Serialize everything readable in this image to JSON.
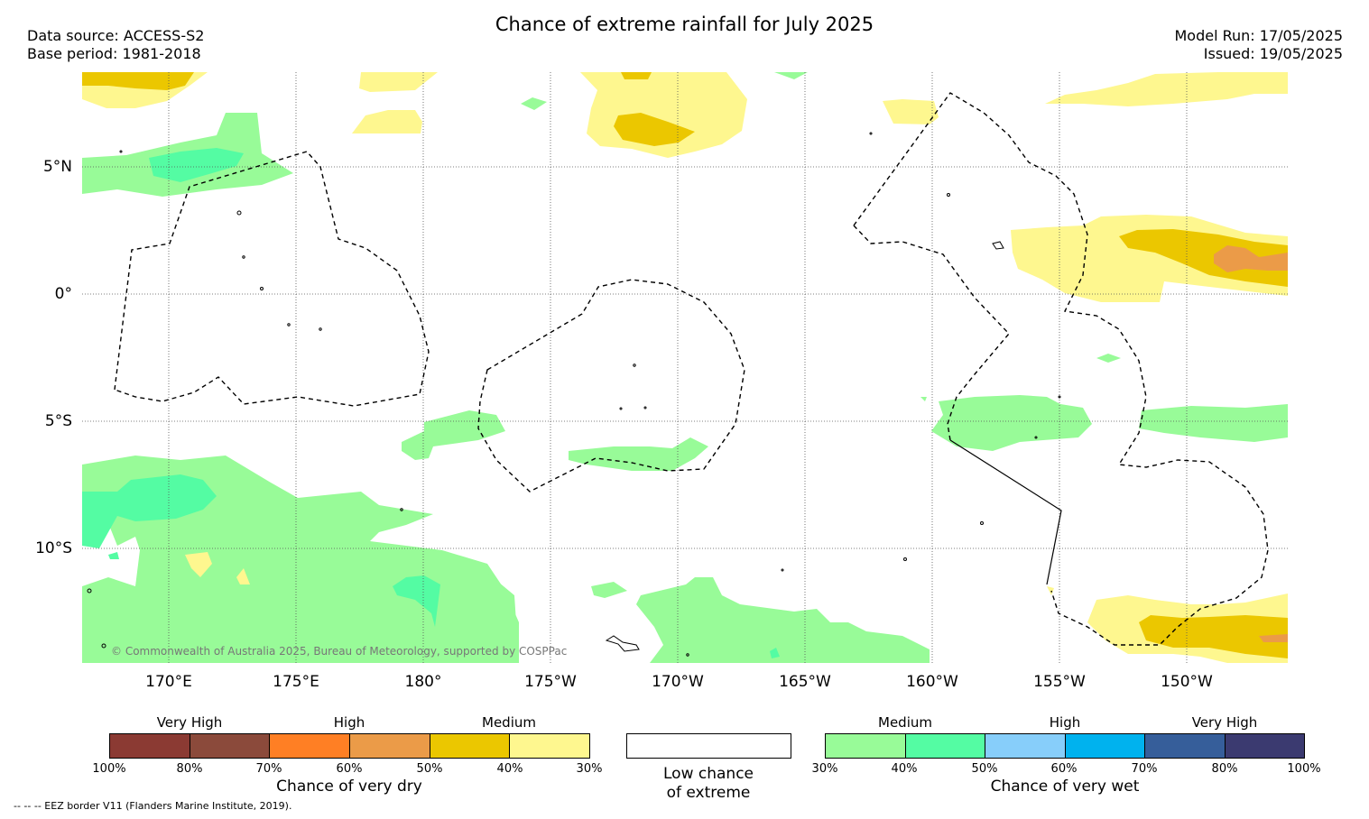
{
  "title": "Chance of extreme rainfall for July 2025",
  "meta_left": [
    "Data source: ACCESS-S2",
    "Base period: 1981-2018"
  ],
  "meta_right": [
    "Model Run: 17/05/2025",
    "Issued: 19/05/2025"
  ],
  "lat_labels": [
    "5°N",
    "0°",
    "5°S",
    "10°S"
  ],
  "lon_labels": [
    "170°E",
    "175°E",
    "180°",
    "175°W",
    "170°W",
    "165°W",
    "160°W",
    "155°W",
    "150°W"
  ],
  "credit": "© Commonwealth of Australia 2025, Bureau of Meteorology, supported by COSPPac",
  "footnote": "-- -- -- EEZ border V11 (Flanders Marine Institute, 2019).",
  "legend": {
    "dry": {
      "categories": [
        "Very High",
        "High",
        "Medium"
      ],
      "ticks": [
        "100%",
        "80%",
        "70%",
        "60%",
        "50%",
        "40%",
        "30%"
      ],
      "colors": [
        "#8b3a33",
        "#8b4a3b",
        "#ff7f24",
        "#eb9b48",
        "#ebc700",
        "#fef78f"
      ],
      "caption": "Chance of very dry"
    },
    "neutral": {
      "caption_lines": [
        "Low chance",
        "of extreme"
      ],
      "color": "#ffffff"
    },
    "wet": {
      "categories": [
        "Medium",
        "High",
        "Very High"
      ],
      "ticks": [
        "30%",
        "40%",
        "50%",
        "60%",
        "70%",
        "80%",
        "100%"
      ],
      "colors": [
        "#98fb98",
        "#54fca3",
        "#87cefa",
        "#00b2ee",
        "#365e9a",
        "#3b3a70"
      ],
      "caption": "Chance of very wet"
    }
  }
}
